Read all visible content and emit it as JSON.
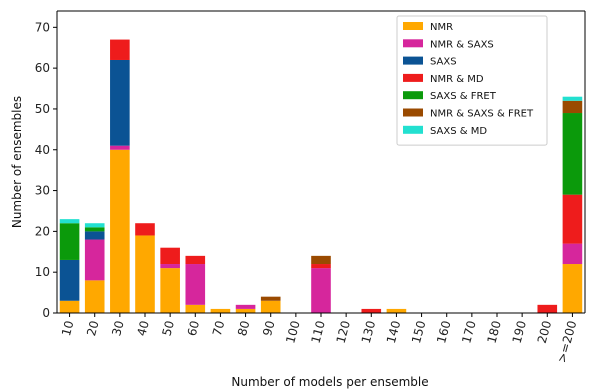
{
  "chart_data": {
    "type": "bar",
    "stacked": true,
    "xlabel": "Number of models per ensemble",
    "ylabel": "Number of ensembles",
    "ylim": [
      0,
      74
    ],
    "yticks": [
      0,
      10,
      20,
      30,
      40,
      50,
      60,
      70
    ],
    "legend_position": "top-right",
    "grid": false,
    "categories": [
      "10",
      "20",
      "30",
      "40",
      "50",
      "60",
      "70",
      "80",
      "90",
      "100",
      "110",
      "120",
      "130",
      "140",
      "150",
      "160",
      "170",
      "180",
      "190",
      "200",
      ">=200"
    ],
    "series": [
      {
        "name": "NMR",
        "color": "#ffa800",
        "values": [
          3,
          8,
          40,
          19,
          11,
          2,
          1,
          1,
          3,
          0,
          0,
          0,
          0,
          1,
          0,
          0,
          0,
          0,
          0,
          0,
          12
        ]
      },
      {
        "name": "NMR & SAXS",
        "color": "#d6269c",
        "values": [
          0,
          10,
          1,
          0,
          1,
          10,
          0,
          1,
          0,
          0,
          11,
          0,
          0,
          0,
          0,
          0,
          0,
          0,
          0,
          0,
          5
        ]
      },
      {
        "name": "SAXS",
        "color": "#0b5394",
        "values": [
          10,
          2,
          21,
          0,
          0,
          0,
          0,
          0,
          0,
          0,
          0,
          0,
          0,
          0,
          0,
          0,
          0,
          0,
          0,
          0,
          0
        ]
      },
      {
        "name": "NMR & MD",
        "color": "#ee1c1c",
        "values": [
          0,
          0,
          5,
          3,
          4,
          2,
          0,
          0,
          0,
          0,
          1,
          0,
          1,
          0,
          0,
          0,
          0,
          0,
          0,
          2,
          12
        ]
      },
      {
        "name": "SAXS & FRET",
        "color": "#0b9a0b",
        "values": [
          9,
          1,
          0,
          0,
          0,
          0,
          0,
          0,
          0,
          0,
          0,
          0,
          0,
          0,
          0,
          0,
          0,
          0,
          0,
          0,
          20
        ]
      },
      {
        "name": "NMR & SAXS & FRET",
        "color": "#9a4a00",
        "values": [
          0,
          0,
          0,
          0,
          0,
          0,
          0,
          0,
          1,
          0,
          2,
          0,
          0,
          0,
          0,
          0,
          0,
          0,
          0,
          0,
          3
        ]
      },
      {
        "name": "SAXS & MD",
        "color": "#22e0d0",
        "values": [
          1,
          1,
          0,
          0,
          0,
          0,
          0,
          0,
          0,
          0,
          0,
          0,
          0,
          0,
          0,
          0,
          0,
          0,
          0,
          0,
          1
        ]
      }
    ]
  }
}
